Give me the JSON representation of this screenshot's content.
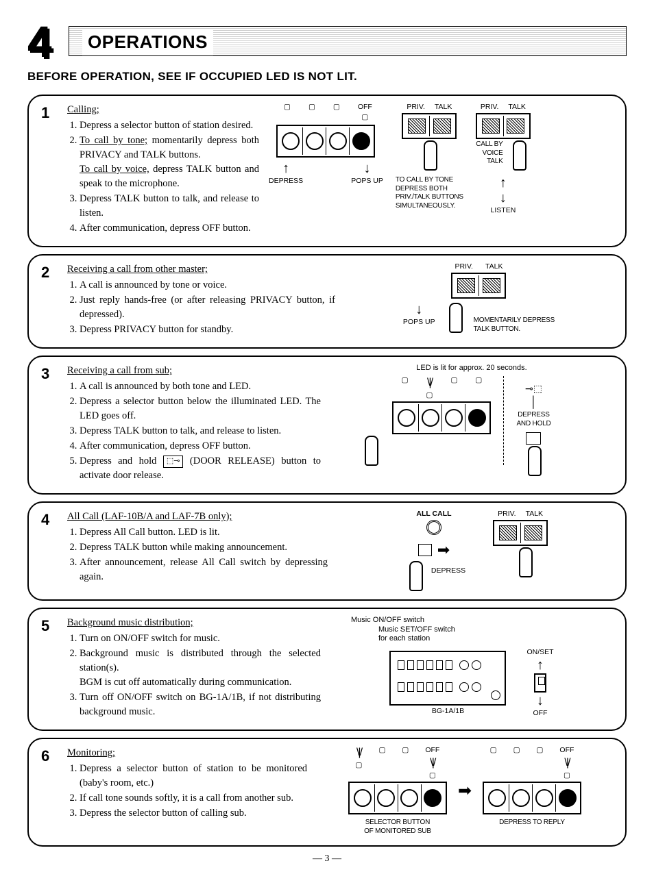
{
  "header": {
    "chapter_number": "4",
    "title": "OPERATIONS",
    "subheading": "BEFORE OPERATION, SEE IF OCCUPIED LED IS NOT LIT."
  },
  "steps": [
    {
      "num": "1",
      "title": "Calling;",
      "items": [
        "Depress a selector button of station desired.",
        "<span class='u'>To call by tone;</span> momentarily depress both PRIVACY and TALK buttons.<br><span class='u'>To call by voice,</span> depress TALK button and speak to the microphone.",
        "Depress TALK button to talk, and release to listen.",
        "After communication, depress OFF button."
      ],
      "illus": {
        "off_label": "OFF",
        "depress": "DEPRESS",
        "pops_up": "POPS UP",
        "priv": "PRIV.",
        "talk": "TALK",
        "tone_caption": "TO CALL BY TONE\nDEPRESS BOTH\nPRIV./TALK BUTTONS\nSIMULTANEOUSLY.",
        "voice_caption": "CALL BY\nVOICE\nTALK",
        "listen": "LISTEN"
      }
    },
    {
      "num": "2",
      "title": "Receiving a call from other master;",
      "items": [
        "A call is announced by tone or voice.",
        "Just reply hands-free (or after releasing PRIVACY button, if depressed).",
        "Depress PRIVACY button for standby."
      ],
      "illus": {
        "priv": "PRIV.",
        "talk": "TALK",
        "pops_up": "POPS UP",
        "caption": "MOMENTARILY DEPRESS\nTALK BUTTON."
      }
    },
    {
      "num": "3",
      "title": "Receiving a call from sub;",
      "items": [
        "A call is announced by both tone and LED.",
        "Depress a selector button below the illuminated LED. The LED goes off.",
        "Depress TALK button to talk, and release to listen.",
        "After communication, depress OFF button.",
        "Depress and hold <span class='key-icon'>⬚⊸</span> (DOOR RELEASE) button to activate door release."
      ],
      "illus": {
        "led_caption": "LED is lit for approx. 20 seconds.",
        "depress_hold": "DEPRESS\nAND HOLD"
      }
    },
    {
      "num": "4",
      "title": "All Call (LAF-10B/A and LAF-7B only);",
      "items": [
        "Depress All Call button. LED is lit.",
        "Depress TALK button while making announcement.",
        "After announcement, release All Call switch by depressing again."
      ],
      "illus": {
        "all_call": "ALL CALL",
        "depress": "DEPRESS",
        "priv": "PRIV.",
        "talk": "TALK"
      }
    },
    {
      "num": "5",
      "title": "Background music distribution;",
      "items": [
        "Turn on ON/OFF switch for music.",
        "Background music is distributed through the selected station(s).<br>BGM is cut off automatically during communication.",
        "Turn off ON/OFF switch on BG-1A/1B, if not distributing background music."
      ],
      "illus": {
        "main_sw": "Music ON/OFF switch",
        "each_sw": "Music SET/OFF switch\nfor each station",
        "onset": "ON/SET",
        "off": "OFF",
        "device": "BG-1A/1B"
      }
    },
    {
      "num": "6",
      "title": "Monitoring;",
      "items": [
        "Depress a selector button of station to be monitored (baby's room, etc.)",
        "If call tone sounds softly, it is a call from another sub.",
        "Depress the selector button of calling sub."
      ],
      "illus": {
        "off": "OFF",
        "sel_caption": "SELECTOR BUTTON\nOF MONITORED SUB",
        "reply": "DEPRESS TO REPLY"
      }
    }
  ],
  "page_number": "— 3 —",
  "colors": {
    "bg": "#ffffff",
    "fg": "#000000",
    "stripe": "#d0d0d0"
  }
}
